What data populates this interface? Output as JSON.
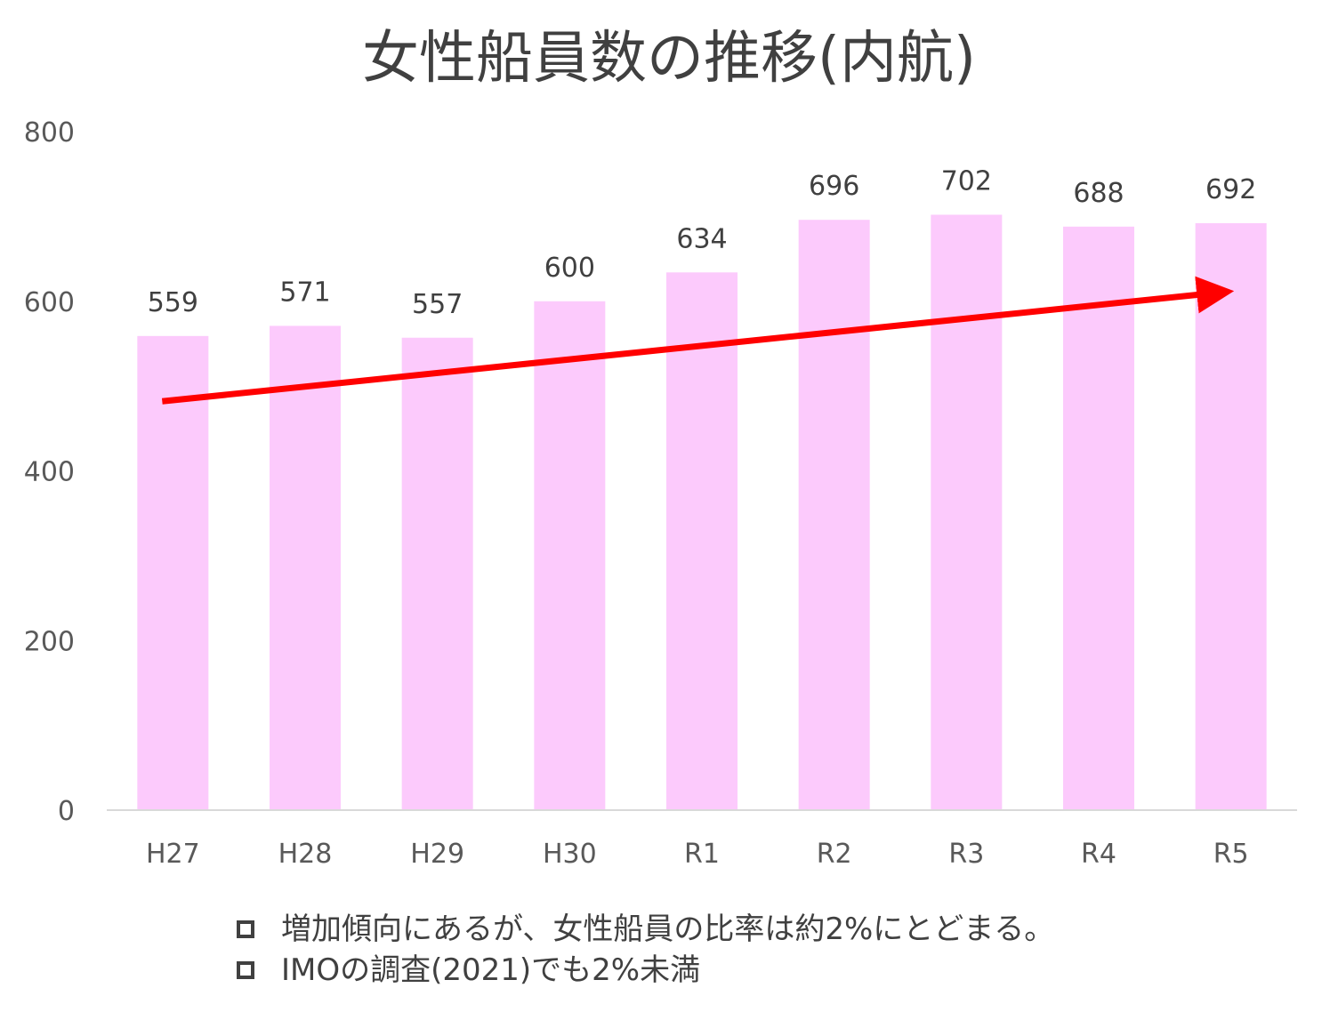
{
  "title": "女性船員数の推移(内航)",
  "chart_data": {
    "type": "bar",
    "title": "女性船員数の推移(内航)",
    "categories": [
      "H27",
      "H28",
      "H29",
      "H30",
      "R1",
      "R2",
      "R3",
      "R4",
      "R5"
    ],
    "values": [
      559,
      571,
      557,
      600,
      634,
      696,
      702,
      688,
      692
    ],
    "data_labels": [
      "559",
      "571",
      "557",
      "600",
      "634",
      "696",
      "702",
      "688",
      "692"
    ],
    "ylim": [
      0,
      800
    ],
    "yticks": [
      "0",
      "200",
      "400",
      "600",
      "800"
    ],
    "grid": false,
    "bar_color": "#fccafc",
    "annotations": [
      {
        "type": "trend-arrow",
        "color": "#ff0000",
        "from": {
          "x": "H27",
          "y": 482
        },
        "to": {
          "x": "R5",
          "y": 610
        }
      }
    ]
  },
  "notes": [
    "増加傾向にあるが、女性船員の比率は約2%にとどまる。",
    "IMOの調査(2021)でも2%未満"
  ]
}
